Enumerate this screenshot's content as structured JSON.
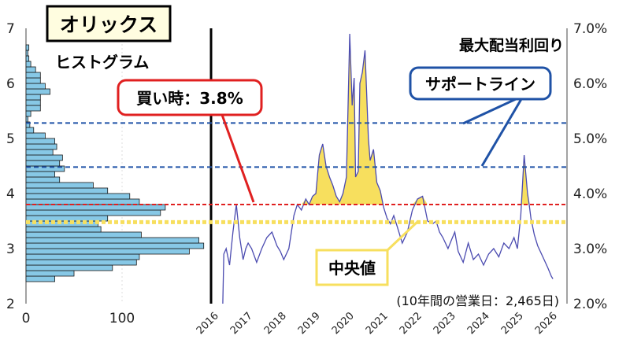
{
  "chart_data": {
    "type": "line",
    "company": "オリックス",
    "title": "最大配当利回り",
    "histogram_label": "ヒストグラム",
    "note": "(10年間の営業日：2,465日)",
    "buy_label": "買い時：3.8%",
    "support_label": "サポートライン",
    "median_label": "中央値",
    "left_axis": {
      "ticks": [
        "2",
        "3",
        "4",
        "5",
        "6",
        "7"
      ],
      "range": [
        2,
        7
      ]
    },
    "right_axis": {
      "ticks": [
        "2.0%",
        "3.0%",
        "4.0%",
        "5.0%",
        "6.0%",
        "7.0%"
      ],
      "range": [
        2.0,
        7.0
      ],
      "unit": "%"
    },
    "hist_axis": {
      "ticks": [
        "0",
        "100"
      ],
      "range": [
        0,
        170
      ]
    },
    "x_ticks": [
      "2016",
      "2017",
      "2018",
      "2019",
      "2020",
      "2021",
      "2022",
      "2023",
      "2024",
      "2025",
      "2026"
    ],
    "x_range": [
      2016,
      2026
    ],
    "reference_lines": {
      "buy": 3.8,
      "median": 3.48,
      "support": [
        5.28,
        4.48
      ]
    },
    "histogram": {
      "bin_width": 0.1,
      "bins": [
        {
          "lo": 2.4,
          "count": 30
        },
        {
          "lo": 2.5,
          "count": 50
        },
        {
          "lo": 2.6,
          "count": 90
        },
        {
          "lo": 2.7,
          "count": 115
        },
        {
          "lo": 2.8,
          "count": 118
        },
        {
          "lo": 2.9,
          "count": 170
        },
        {
          "lo": 3.0,
          "count": 185
        },
        {
          "lo": 3.1,
          "count": 180
        },
        {
          "lo": 3.2,
          "count": 120
        },
        {
          "lo": 3.3,
          "count": 78
        },
        {
          "lo": 3.4,
          "count": 75
        },
        {
          "lo": 3.5,
          "count": 85
        },
        {
          "lo": 3.6,
          "count": 140
        },
        {
          "lo": 3.7,
          "count": 145
        },
        {
          "lo": 3.8,
          "count": 118
        },
        {
          "lo": 3.9,
          "count": 108
        },
        {
          "lo": 4.0,
          "count": 85
        },
        {
          "lo": 4.1,
          "count": 70
        },
        {
          "lo": 4.2,
          "count": 35
        },
        {
          "lo": 4.3,
          "count": 30
        },
        {
          "lo": 4.4,
          "count": 40
        },
        {
          "lo": 4.5,
          "count": 35
        },
        {
          "lo": 4.6,
          "count": 38
        },
        {
          "lo": 4.7,
          "count": 28
        },
        {
          "lo": 4.8,
          "count": 32
        },
        {
          "lo": 4.9,
          "count": 30
        },
        {
          "lo": 5.0,
          "count": 20
        },
        {
          "lo": 5.1,
          "count": 8
        },
        {
          "lo": 5.2,
          "count": 4
        },
        {
          "lo": 5.3,
          "count": 2
        },
        {
          "lo": 5.4,
          "count": 5
        },
        {
          "lo": 5.5,
          "count": 15
        },
        {
          "lo": 5.6,
          "count": 15
        },
        {
          "lo": 5.7,
          "count": 15
        },
        {
          "lo": 5.8,
          "count": 25
        },
        {
          "lo": 5.9,
          "count": 20
        },
        {
          "lo": 6.0,
          "count": 15
        },
        {
          "lo": 6.1,
          "count": 15
        },
        {
          "lo": 6.2,
          "count": 10
        },
        {
          "lo": 6.3,
          "count": 5
        },
        {
          "lo": 6.4,
          "count": 3
        },
        {
          "lo": 6.5,
          "count": 2
        },
        {
          "lo": 6.6,
          "count": 3
        }
      ]
    },
    "series": [
      {
        "x": [
          2016.3,
          2016.33,
          2016.4,
          2016.5,
          2016.6,
          2016.7,
          2016.8,
          2016.9,
          2016.98,
          2017.05,
          2017.15,
          2017.3,
          2017.45,
          2017.6,
          2017.75,
          2017.9,
          2018.0,
          2018.1,
          2018.25,
          2018.4,
          2018.5,
          2018.62,
          2018.75,
          2018.85,
          2018.95,
          2019.05,
          2019.15,
          2019.25,
          2019.35,
          2019.45,
          2019.55,
          2019.65,
          2019.75,
          2019.85,
          2019.95,
          2020.05,
          2020.12,
          2020.18,
          2020.22,
          2020.3,
          2020.35,
          2020.42,
          2020.5,
          2020.6,
          2020.65,
          2020.75,
          2020.85,
          2020.95,
          2021.05,
          2021.15,
          2021.25,
          2021.35,
          2021.45,
          2021.6,
          2021.75,
          2021.9,
          2022.05,
          2022.2,
          2022.35,
          2022.5,
          2022.6,
          2022.7,
          2022.8,
          2022.95,
          2023.05,
          2023.15,
          2023.25,
          2023.4,
          2023.55,
          2023.7,
          2023.85,
          2024.0,
          2024.15,
          2024.3,
          2024.45,
          2024.6,
          2024.75,
          2024.9,
          2025.0,
          2025.1,
          2025.2,
          2025.3,
          2025.35,
          2025.4,
          2025.5,
          2025.6,
          2025.75,
          2025.9,
          2026.0,
          2026.05
        ],
        "y": [
          2.0,
          2.9,
          3.0,
          2.7,
          3.3,
          3.8,
          3.2,
          2.8,
          3.0,
          3.1,
          3.0,
          2.75,
          3.0,
          3.2,
          3.3,
          3.05,
          2.95,
          2.8,
          3.0,
          3.6,
          3.8,
          3.7,
          3.9,
          3.8,
          3.95,
          4.0,
          4.7,
          4.9,
          4.5,
          4.3,
          4.15,
          3.95,
          3.85,
          4.0,
          4.3,
          6.9,
          5.6,
          6.1,
          4.3,
          4.4,
          6.0,
          6.2,
          6.6,
          5.0,
          4.6,
          4.8,
          4.2,
          4.05,
          3.75,
          3.55,
          3.45,
          3.6,
          3.4,
          3.1,
          3.3,
          3.7,
          3.9,
          3.95,
          3.5,
          3.45,
          3.5,
          3.3,
          3.2,
          3.0,
          3.15,
          3.3,
          2.95,
          2.75,
          3.1,
          2.8,
          2.9,
          2.7,
          2.9,
          3.0,
          2.85,
          3.1,
          3.0,
          3.2,
          3.0,
          3.6,
          4.7,
          4.0,
          3.8,
          3.55,
          3.25,
          3.05,
          2.85,
          2.65,
          2.5,
          2.45
        ],
        "color": "#4b4bb0"
      }
    ],
    "colors": {
      "hist_fill": "#87c8e6",
      "hist_stroke": "#1a1a1a",
      "line": "#4b4bb0",
      "highlight_fill": "#f7df5e",
      "buy": "#e02020",
      "median": "#f7df5e",
      "support": "#1f52a6"
    }
  }
}
